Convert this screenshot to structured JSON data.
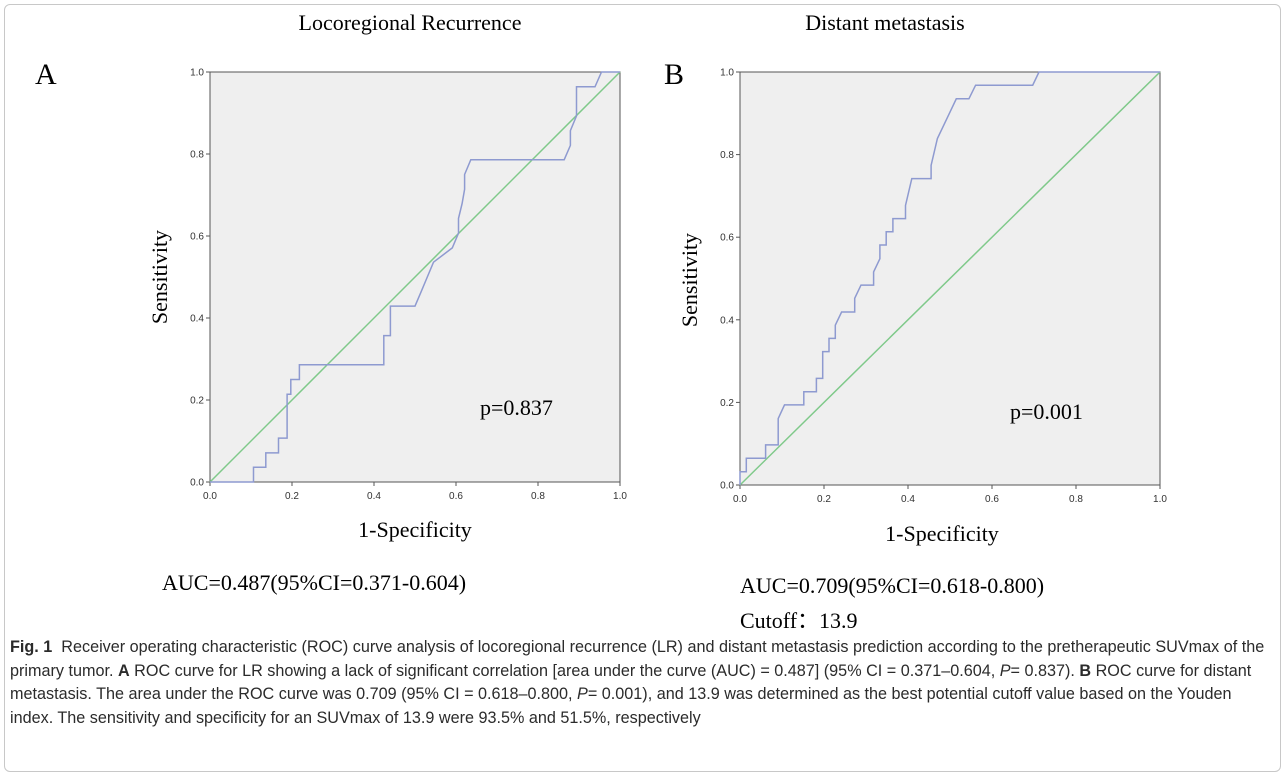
{
  "chart_data": [
    {
      "type": "line",
      "panel_letter": "A",
      "title": "Locoregional Recurrence",
      "xlabel": "1-Specificity",
      "ylabel": "Sensitivity",
      "xlim": [
        0,
        1
      ],
      "ylim": [
        0,
        1
      ],
      "ticks": [
        "0.0",
        "0.2",
        "0.4",
        "0.6",
        "0.8",
        "1.0"
      ],
      "annotation": "p=0.837",
      "auc_text": "AUC=0.487(95%CI=0.371-0.604)",
      "cutoff_text": "",
      "series": [
        {
          "color": "#8e9ad0",
          "points": [
            [
              0,
              0
            ],
            [
              0.106,
              0
            ],
            [
              0.106,
              0.036
            ],
            [
              0.136,
              0.036
            ],
            [
              0.136,
              0.071
            ],
            [
              0.167,
              0.071
            ],
            [
              0.167,
              0.107
            ],
            [
              0.188,
              0.107
            ],
            [
              0.188,
              0.214
            ],
            [
              0.197,
              0.214
            ],
            [
              0.197,
              0.25
            ],
            [
              0.218,
              0.25
            ],
            [
              0.218,
              0.286
            ],
            [
              0.424,
              0.286
            ],
            [
              0.424,
              0.357
            ],
            [
              0.44,
              0.357
            ],
            [
              0.44,
              0.429
            ],
            [
              0.5,
              0.429
            ],
            [
              0.515,
              0.464
            ],
            [
              0.53,
              0.5
            ],
            [
              0.545,
              0.536
            ],
            [
              0.591,
              0.571
            ],
            [
              0.606,
              0.607
            ],
            [
              0.606,
              0.643
            ],
            [
              0.615,
              0.679
            ],
            [
              0.621,
              0.714
            ],
            [
              0.621,
              0.75
            ],
            [
              0.636,
              0.786
            ],
            [
              0.864,
              0.786
            ],
            [
              0.879,
              0.821
            ],
            [
              0.879,
              0.857
            ],
            [
              0.894,
              0.893
            ],
            [
              0.894,
              0.964
            ],
            [
              0.939,
              0.964
            ],
            [
              0.955,
              1
            ],
            [
              1,
              1
            ]
          ]
        },
        {
          "color": "#7fc98a",
          "points": [
            [
              0,
              0
            ],
            [
              1,
              1
            ]
          ]
        }
      ]
    },
    {
      "type": "line",
      "panel_letter": "B",
      "title": "Distant metastasis",
      "xlabel": "1-Specificity",
      "ylabel": "Sensitivity",
      "xlim": [
        0,
        1
      ],
      "ylim": [
        0,
        1
      ],
      "ticks": [
        "0.0",
        "0.2",
        "0.4",
        "0.6",
        "0.8",
        "1.0"
      ],
      "annotation": "p=0.001",
      "auc_text": "AUC=0.709(95%CI=0.618-0.800)",
      "cutoff_text": "Cutoff：13.9",
      "series": [
        {
          "color": "#8e9ad0",
          "points": [
            [
              0,
              0
            ],
            [
              0,
              0.032
            ],
            [
              0.015,
              0.032
            ],
            [
              0.015,
              0.065
            ],
            [
              0.061,
              0.065
            ],
            [
              0.061,
              0.097
            ],
            [
              0.091,
              0.097
            ],
            [
              0.091,
              0.161
            ],
            [
              0.106,
              0.194
            ],
            [
              0.152,
              0.194
            ],
            [
              0.152,
              0.226
            ],
            [
              0.182,
              0.226
            ],
            [
              0.182,
              0.258
            ],
            [
              0.197,
              0.258
            ],
            [
              0.197,
              0.323
            ],
            [
              0.212,
              0.323
            ],
            [
              0.212,
              0.355
            ],
            [
              0.227,
              0.355
            ],
            [
              0.227,
              0.387
            ],
            [
              0.242,
              0.419
            ],
            [
              0.273,
              0.419
            ],
            [
              0.273,
              0.452
            ],
            [
              0.288,
              0.484
            ],
            [
              0.318,
              0.484
            ],
            [
              0.318,
              0.516
            ],
            [
              0.333,
              0.548
            ],
            [
              0.333,
              0.581
            ],
            [
              0.348,
              0.581
            ],
            [
              0.348,
              0.613
            ],
            [
              0.364,
              0.613
            ],
            [
              0.364,
              0.645
            ],
            [
              0.394,
              0.645
            ],
            [
              0.394,
              0.677
            ],
            [
              0.409,
              0.742
            ],
            [
              0.455,
              0.742
            ],
            [
              0.455,
              0.774
            ],
            [
              0.47,
              0.839
            ],
            [
              0.5,
              0.903
            ],
            [
              0.515,
              0.935
            ],
            [
              0.545,
              0.935
            ],
            [
              0.561,
              0.968
            ],
            [
              0.697,
              0.968
            ],
            [
              0.712,
              1
            ],
            [
              1,
              1
            ]
          ]
        },
        {
          "color": "#7fc98a",
          "points": [
            [
              0,
              0
            ],
            [
              1,
              1
            ]
          ]
        }
      ]
    }
  ],
  "caption": {
    "fig_label": "Fig. 1",
    "text1": "Receiver operating characteristic (ROC) curve analysis of locoregional recurrence (LR) and distant metastasis prediction according to the pretherapeutic SUVmax of the primary tumor.",
    "a_label": "A",
    "text2": "ROC curve for LR showing a lack of significant correlation [area under the curve (AUC) = 0.487] (95% CI = 0.371–0.604,",
    "p1": "P",
    "text3": "= 0.837).",
    "b_label": "B",
    "text4": "ROC curve for distant metastasis. The area under the ROC curve was 0.709 (95% CI = 0.618–0.800,",
    "p2": "P",
    "text5": "= 0.001), and 13.9 was determined as the best potential cutoff value based on the Youden index. The sensitivity and specificity for an SUVmax of 13.9 were 93.5% and 51.5%, respectively"
  },
  "colors": {
    "plot_bg": "#efefef",
    "roc_curve": "#8e9ad0",
    "reference_line": "#7fc98a",
    "axis": "#555555"
  }
}
